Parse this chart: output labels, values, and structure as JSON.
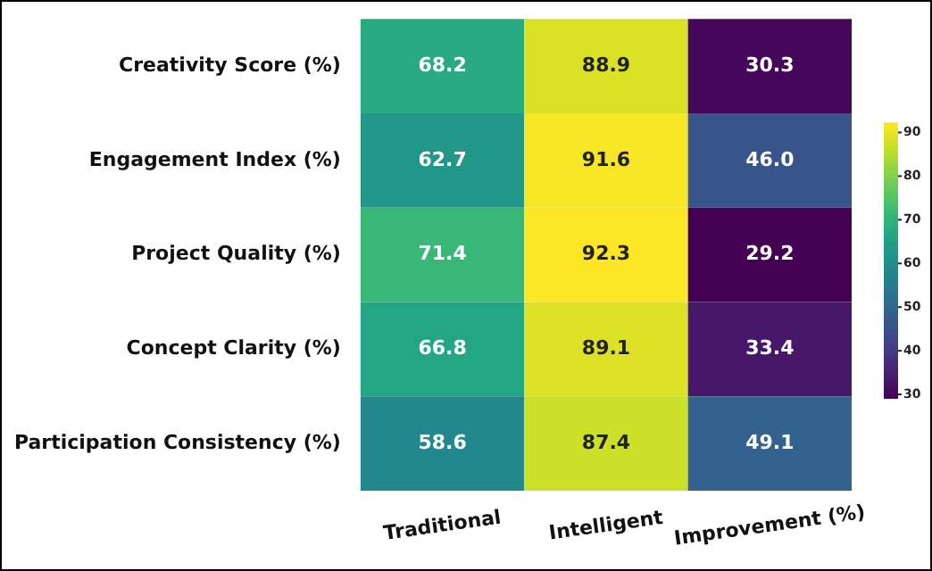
{
  "chart_data": {
    "type": "heatmap",
    "categories": [
      "Traditional",
      "Intelligent",
      "Improvement (%)"
    ],
    "y_categories": [
      "Creativity Score (%)",
      "Engagement Index (%)",
      "Project Quality (%)",
      "Concept Clarity (%)",
      "Participation Consistency (%)"
    ],
    "cells": [
      [
        68.2,
        88.9,
        30.3
      ],
      [
        62.7,
        91.6,
        46.0
      ],
      [
        71.4,
        92.3,
        29.2
      ],
      [
        66.8,
        89.1,
        33.4
      ],
      [
        58.6,
        87.4,
        49.1
      ]
    ],
    "cell_labels": [
      [
        "68.2",
        "88.9",
        "30.3"
      ],
      [
        "62.7",
        "91.6",
        "46.0"
      ],
      [
        "71.4",
        "92.3",
        "29.2"
      ],
      [
        "66.8",
        "89.1",
        "33.4"
      ],
      [
        "58.6",
        "87.4",
        "49.1"
      ]
    ],
    "clim": [
      29.2,
      92.3
    ],
    "cticks": [
      30,
      40,
      50,
      60,
      70,
      80,
      90
    ]
  }
}
